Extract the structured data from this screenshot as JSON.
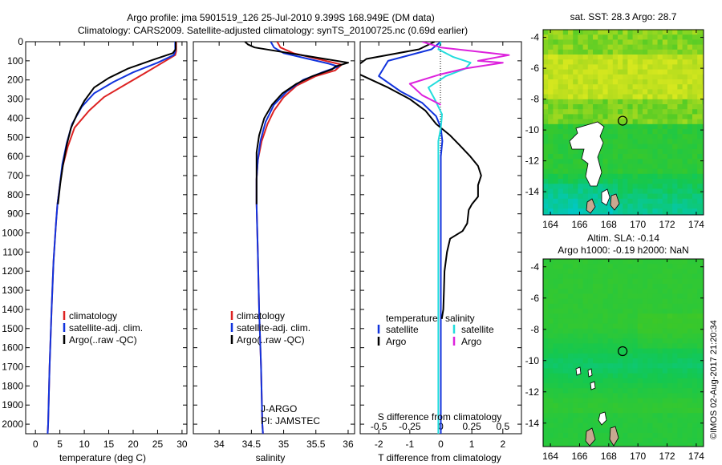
{
  "header": {
    "line1": "Argo profile: jma 5901519_126 25-Jul-2010 9.399S 168.949E (DM data)",
    "line2": "Climatology: CARS2009. Satellite-adjusted climatology: synTS_20100725.nc (0.69d earlier)"
  },
  "chart_data": [
    {
      "id": "temperature",
      "type": "line",
      "xlabel": "temperature (deg C)",
      "ylabel": "",
      "xlim": [
        -2,
        31
      ],
      "ylim": [
        2050,
        0
      ],
      "xticks": [
        0,
        5,
        10,
        15,
        20,
        25,
        30
      ],
      "yticks": [
        0,
        100,
        200,
        300,
        400,
        500,
        600,
        700,
        800,
        900,
        1000,
        1100,
        1200,
        1300,
        1400,
        1500,
        1600,
        1700,
        1800,
        1900,
        2000
      ],
      "legend": [
        "climatology",
        "satellite-adj. clim.",
        "Argo(..raw -QC)"
      ],
      "series": [
        {
          "name": "climatology",
          "color": "#dd2222",
          "points": [
            [
              28.8,
              0
            ],
            [
              28.8,
              50
            ],
            [
              28.6,
              70
            ],
            [
              26,
              110
            ],
            [
              22,
              170
            ],
            [
              18,
              230
            ],
            [
              14,
              290
            ],
            [
              11,
              360
            ],
            [
              8,
              450
            ],
            [
              6.6,
              550
            ],
            [
              5.6,
              650
            ],
            [
              5,
              750
            ],
            [
              4.5,
              850
            ],
            [
              4.2,
              950
            ],
            [
              3.7,
              1150
            ],
            [
              3.3,
              1400
            ],
            [
              2.9,
              1700
            ],
            [
              2.6,
              2000
            ],
            [
              2.5,
              2050
            ]
          ]
        },
        {
          "name": "satellite-adj. clim.",
          "color": "#1133dd",
          "points": [
            [
              28.6,
              0
            ],
            [
              28.6,
              50
            ],
            [
              28.3,
              70
            ],
            [
              25,
              110
            ],
            [
              20,
              160
            ],
            [
              16,
              210
            ],
            [
              12,
              270
            ],
            [
              9.5,
              340
            ],
            [
              7.5,
              430
            ],
            [
              6.4,
              530
            ],
            [
              5.5,
              640
            ],
            [
              5,
              750
            ],
            [
              4.5,
              850
            ],
            [
              4.2,
              950
            ],
            [
              3.7,
              1150
            ],
            [
              3.3,
              1400
            ],
            [
              2.9,
              1700
            ],
            [
              2.6,
              2000
            ],
            [
              2.5,
              2050
            ]
          ]
        },
        {
          "name": "Argo(..raw -QC)",
          "color": "#000000",
          "points": [
            [
              28.7,
              0
            ],
            [
              28.7,
              40
            ],
            [
              28.1,
              60
            ],
            [
              24,
              95
            ],
            [
              19,
              140
            ],
            [
              15,
              190
            ],
            [
              12,
              240
            ],
            [
              10,
              310
            ],
            [
              8.5,
              380
            ],
            [
              7.3,
              450
            ],
            [
              6.4,
              540
            ],
            [
              5.6,
              650
            ],
            [
              5.1,
              740
            ],
            [
              4.6,
              850
            ]
          ]
        }
      ]
    },
    {
      "id": "salinity",
      "type": "line",
      "xlabel": "salinity",
      "ylabel": "",
      "xlim": [
        33.6,
        36.1
      ],
      "ylim": [
        2050,
        0
      ],
      "xticks": [
        34,
        34.5,
        35,
        35.5,
        36
      ],
      "legend": [
        "climatology",
        "satellite-adj. clim.",
        "Argo(..raw -QC)"
      ],
      "annotation": [
        "J-ARGO",
        "PI: JAMSTEC"
      ],
      "series": [
        {
          "name": "climatology",
          "color": "#dd2222",
          "points": [
            [
              34.9,
              0
            ],
            [
              34.95,
              30
            ],
            [
              35.15,
              60
            ],
            [
              35.9,
              120
            ],
            [
              35.8,
              150
            ],
            [
              35.5,
              180
            ],
            [
              35.2,
              230
            ],
            [
              35.0,
              290
            ],
            [
              34.85,
              360
            ],
            [
              34.75,
              430
            ],
            [
              34.66,
              520
            ],
            [
              34.6,
              620
            ],
            [
              34.58,
              720
            ],
            [
              34.58,
              850
            ],
            [
              34.6,
              1100
            ],
            [
              34.62,
              1400
            ],
            [
              34.65,
              1700
            ],
            [
              34.67,
              2000
            ],
            [
              34.68,
              2050
            ]
          ]
        },
        {
          "name": "satellite-adj. clim.",
          "color": "#1133dd",
          "points": [
            [
              34.8,
              0
            ],
            [
              34.85,
              30
            ],
            [
              35.0,
              60
            ],
            [
              35.7,
              115
            ],
            [
              35.85,
              130
            ],
            [
              35.6,
              160
            ],
            [
              35.3,
              200
            ],
            [
              35.05,
              260
            ],
            [
              34.85,
              330
            ],
            [
              34.72,
              420
            ],
            [
              34.64,
              520
            ],
            [
              34.6,
              620
            ],
            [
              34.58,
              720
            ],
            [
              34.58,
              850
            ],
            [
              34.6,
              1100
            ],
            [
              34.62,
              1400
            ],
            [
              34.65,
              1700
            ],
            [
              34.67,
              2000
            ],
            [
              34.68,
              2050
            ]
          ]
        },
        {
          "name": "Argo(..raw -QC)",
          "color": "#000000",
          "points": [
            [
              34.4,
              0
            ],
            [
              34.45,
              15
            ],
            [
              34.55,
              30
            ],
            [
              36.0,
              110
            ],
            [
              35.8,
              130
            ],
            [
              35.75,
              145
            ],
            [
              35.45,
              180
            ],
            [
              35.2,
              220
            ],
            [
              34.98,
              270
            ],
            [
              34.82,
              330
            ],
            [
              34.7,
              400
            ],
            [
              34.62,
              490
            ],
            [
              34.58,
              580
            ],
            [
              34.58,
              700
            ],
            [
              34.58,
              850
            ]
          ]
        }
      ]
    },
    {
      "id": "differences",
      "type": "line",
      "xlabel": "T difference from climatology",
      "xlabel_top": "S difference from climatology",
      "ylabel": "",
      "xlim": [
        -2.6,
        2.6
      ],
      "ylim": [
        2050,
        0
      ],
      "xticks": [
        -2,
        -1,
        0,
        1,
        2
      ],
      "xticks_s": [
        -0.5,
        -0.25,
        0,
        0.25,
        0.5
      ],
      "s_scale": 4,
      "legend_temperature": {
        "title": "temperature",
        "items": [
          "satellite",
          "Argo"
        ]
      },
      "legend_salinity": {
        "title": "salinity",
        "items": [
          "satellite",
          "Argo"
        ]
      },
      "series": [
        {
          "name": "T satellite",
          "color": "#1133dd",
          "units": "deg C",
          "points": [
            [
              0,
              0
            ],
            [
              -0.3,
              40
            ],
            [
              -1.7,
              100
            ],
            [
              -2.0,
              180
            ],
            [
              -1.3,
              260
            ],
            [
              -0.6,
              320
            ],
            [
              -0.15,
              390
            ],
            [
              0.0,
              450
            ],
            [
              0.05,
              520
            ],
            [
              0,
              600
            ],
            [
              0,
              700
            ],
            [
              0,
              1000
            ],
            [
              0,
              1500
            ],
            [
              0,
              2050
            ]
          ]
        },
        {
          "name": "T Argo",
          "color": "#000000",
          "units": "deg C",
          "points": [
            [
              -0.2,
              0
            ],
            [
              -0.7,
              40
            ],
            [
              -2.4,
              90
            ],
            [
              -2.9,
              150
            ],
            [
              -1.7,
              240
            ],
            [
              -1.0,
              300
            ],
            [
              -0.5,
              360
            ],
            [
              -0.15,
              430
            ],
            [
              0.3,
              490
            ],
            [
              0.6,
              540
            ],
            [
              0.95,
              600
            ],
            [
              1.2,
              650
            ],
            [
              1.3,
              700
            ],
            [
              1.2,
              750
            ],
            [
              1.2,
              810
            ],
            [
              1.0,
              850
            ],
            [
              0.9,
              880
            ],
            [
              0.85,
              950
            ],
            [
              0.7,
              990
            ],
            [
              0.3,
              1030
            ],
            [
              0.2,
              1100
            ],
            [
              0.12,
              1200
            ],
            [
              0.1,
              1300
            ],
            [
              0.08,
              1400
            ],
            [
              0.03,
              1450
            ]
          ]
        },
        {
          "name": "S satellite",
          "color": "#22dddd",
          "units": "psu",
          "points": [
            [
              0,
              0
            ],
            [
              -0.02,
              40
            ],
            [
              0.1,
              80
            ],
            [
              0.24,
              110
            ],
            [
              0.2,
              140
            ],
            [
              0.04,
              180
            ],
            [
              -0.1,
              240
            ],
            [
              -0.05,
              300
            ],
            [
              0.01,
              380
            ],
            [
              0,
              450
            ],
            [
              -0.02,
              520
            ],
            [
              -0.02,
              700
            ],
            [
              -0.02,
              1000
            ],
            [
              -0.02,
              1500
            ],
            [
              -0.02,
              2050
            ]
          ]
        },
        {
          "name": "S Argo",
          "color": "#dd22dd",
          "units": "psu",
          "points": [
            [
              -0.15,
              0
            ],
            [
              0.0,
              30
            ],
            [
              0.55,
              70
            ],
            [
              0.3,
              100
            ],
            [
              0.5,
              110
            ],
            [
              0.2,
              140
            ],
            [
              0.0,
              170
            ],
            [
              -0.25,
              220
            ],
            [
              -0.15,
              280
            ],
            [
              0.0,
              330
            ]
          ]
        }
      ]
    }
  ],
  "maps": [
    {
      "id": "sst-map",
      "title": "sat. SST: 28.3 Argo: 28.7",
      "xlim": [
        163.5,
        174.5
      ],
      "ylim": [
        -15.5,
        -3.5
      ],
      "xticks": [
        164,
        166,
        168,
        170,
        172,
        174
      ],
      "yticks": [
        -4,
        -6,
        -8,
        -10,
        -12,
        -14
      ],
      "marker": {
        "lon": 168.949,
        "lat": -9.399
      }
    },
    {
      "id": "sla-map",
      "title": "Altim. SLA: -0.14",
      "subtitle": "Argo h1000: -0.19 h2000: NaN",
      "xlim": [
        163.5,
        174.5
      ],
      "ylim": [
        -15.5,
        -3.5
      ],
      "xticks": [
        164,
        166,
        168,
        170,
        172,
        174
      ],
      "yticks": [
        -4,
        -6,
        -8,
        -10,
        -12,
        -14
      ],
      "marker": {
        "lon": 168.949,
        "lat": -9.399
      }
    }
  ],
  "watermark": "©IMOS 02-Aug-2017 21:20:34"
}
